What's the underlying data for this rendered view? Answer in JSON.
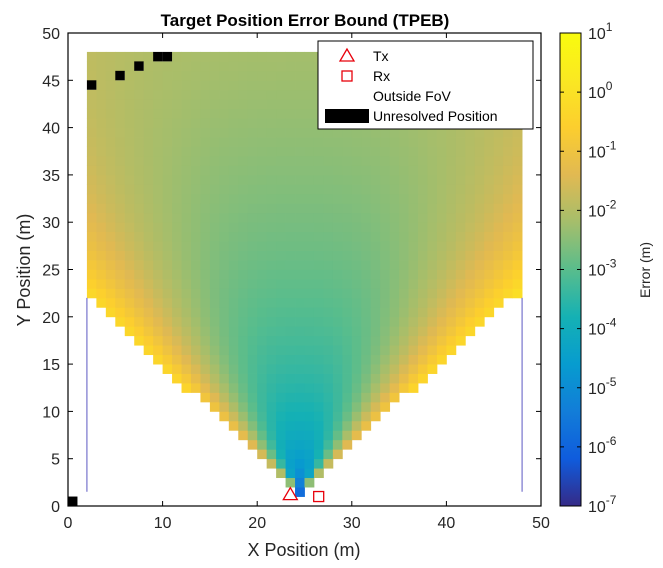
{
  "chart_data": {
    "type": "heatmap",
    "title": "Target Position Error Bound (TPEB)",
    "xlabel": "X Position (m)",
    "ylabel": "Y Position (m)",
    "xlim": [
      0,
      50
    ],
    "ylim": [
      0,
      50
    ],
    "xticks": [
      "0",
      "10",
      "20",
      "30",
      "40",
      "50"
    ],
    "yticks": [
      "0",
      "5",
      "10",
      "15",
      "20",
      "25",
      "30",
      "35",
      "40",
      "45",
      "50"
    ],
    "grid": false,
    "legend_position": "top-right",
    "legend": [
      {
        "label": "Tx",
        "marker": "triangle",
        "color": "#e8000b"
      },
      {
        "label": "Rx",
        "marker": "square",
        "color": "#e8000b"
      },
      {
        "label": "Outside FoV",
        "marker": "none",
        "color": "#ffffff"
      },
      {
        "label": "Unresolved Position",
        "marker": "filled-box",
        "color": "#000000"
      }
    ],
    "colorbar": {
      "label": "Error (m)",
      "scale": "log",
      "range": [
        1e-07,
        10
      ],
      "tick_base": "10",
      "tick_exponents": [
        "1",
        "0",
        "-1",
        "-2",
        "-3",
        "-4",
        "-5",
        "-6",
        "-7"
      ],
      "colormap": "parula"
    },
    "grid_spacing_m": 1,
    "tx": {
      "x": 23.5,
      "y": 1.2
    },
    "rx": {
      "x": 26.5,
      "y": 1.0
    },
    "field_of_view": {
      "apex": [
        24.5,
        1.5
      ],
      "outer_y": 22,
      "x_range": [
        2,
        48
      ],
      "y_top": 48
    },
    "error_model": {
      "min_log10_error": -5.8,
      "max_log10_error": 0.6,
      "description_points": [
        {
          "x": 24.5,
          "y": 2,
          "log10_error": -5.8
        },
        {
          "x": 24.5,
          "y": 10,
          "log10_error": -3.6
        },
        {
          "x": 24.5,
          "y": 20,
          "log10_error": -2.8
        },
        {
          "x": 24.5,
          "y": 30,
          "log10_error": -2.2
        },
        {
          "x": 24.5,
          "y": 45,
          "log10_error": -1.3
        },
        {
          "x": 3,
          "y": 45,
          "log10_error": -0.9
        },
        {
          "x": 3,
          "y": 22,
          "log10_error": 0.5
        }
      ]
    },
    "unresolved_positions": [
      {
        "x": 0.5,
        "y": 0.5
      },
      {
        "x": 2.5,
        "y": 44.5
      },
      {
        "x": 5.5,
        "y": 45.5
      },
      {
        "x": 7.5,
        "y": 46.5
      },
      {
        "x": 9.5,
        "y": 47.5
      },
      {
        "x": 10.5,
        "y": 47.5
      }
    ]
  }
}
